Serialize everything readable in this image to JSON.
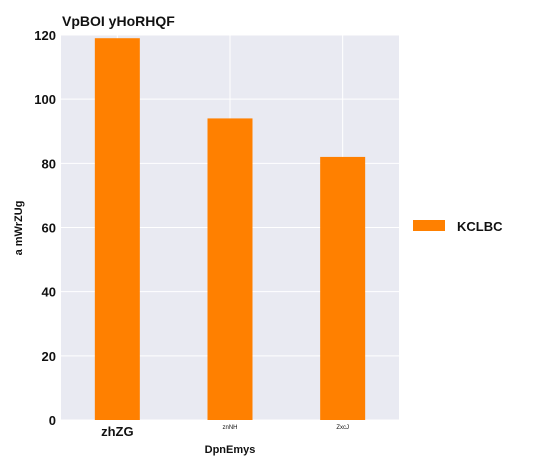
{
  "chart_data": {
    "type": "bar",
    "title": "VpBOI yHoRHQF",
    "xlabel": "DpnEmys",
    "ylabel": "a mWrZUg",
    "categories": [
      "zhZG",
      "znNH",
      "ZxcJ"
    ],
    "series": [
      {
        "name": "KCLBC",
        "values": [
          119,
          94,
          82
        ],
        "color": "#ff8000"
      }
    ],
    "ylim": [
      0,
      120
    ],
    "yticks": [
      0,
      20,
      40,
      60,
      80,
      100,
      120
    ],
    "grid": true,
    "legend_position": "right",
    "plot_background": "#e9eaf2"
  }
}
